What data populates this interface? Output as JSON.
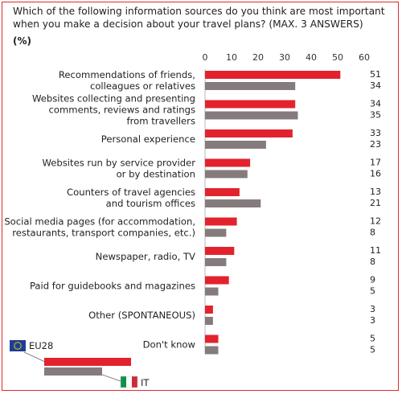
{
  "question": "Which of the following information sources do you think are most important when you make a decision about your travel plans? (MAX. 3 ANSWERS)",
  "unit_label": "(%)",
  "colors": {
    "eu28": "#e2232e",
    "it": "#857b7d",
    "frame": "#e2282c"
  },
  "chart_data": {
    "type": "bar",
    "orientation": "horizontal",
    "xlim": [
      0,
      60
    ],
    "ticks": [
      0,
      10,
      20,
      30,
      40,
      50,
      60
    ],
    "categories": [
      [
        "Recommendations of friends,",
        "colleagues or relatives"
      ],
      [
        "Websites collecting and presenting",
        "comments, reviews and ratings",
        "from travellers"
      ],
      [
        "Personal experience"
      ],
      [
        "Websites run by service provider",
        "or by destination"
      ],
      [
        "Counters of travel agencies",
        "and tourism offices"
      ],
      [
        "Social media pages (for accommodation,",
        "restaurants, transport companies, etc.)"
      ],
      [
        "Newspaper, radio, TV"
      ],
      [
        "Paid for guidebooks and magazines"
      ],
      [
        "Other (SPONTANEOUS)"
      ],
      [
        "Don't know"
      ]
    ],
    "series": [
      {
        "name": "EU28",
        "values": [
          51,
          34,
          33,
          17,
          13,
          12,
          11,
          9,
          3,
          5
        ]
      },
      {
        "name": "IT",
        "values": [
          34,
          35,
          23,
          16,
          21,
          8,
          8,
          5,
          3,
          5
        ]
      }
    ],
    "legend_position": "bottom-left"
  }
}
